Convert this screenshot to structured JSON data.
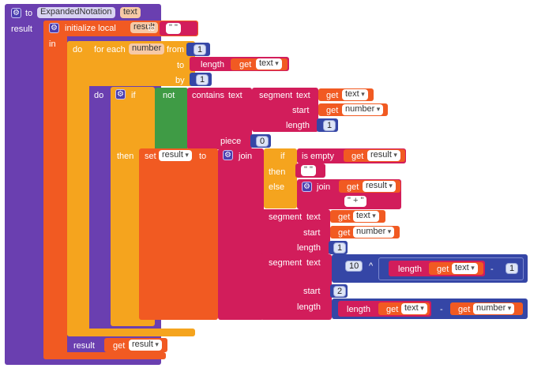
{
  "procedure": {
    "to_label": "to",
    "name": "ExpandedNotation",
    "param": "text",
    "result_label": "result"
  },
  "local": {
    "label": "initialize local",
    "name": "result",
    "to_label": "to",
    "value": "\"  \"",
    "in_label": "in"
  },
  "loop": {
    "do_label": "do",
    "for_each_label": "for each",
    "var": "number",
    "from_label": "from",
    "from_value": "1",
    "to_label": "to",
    "by_label": "by",
    "by_value": "1"
  },
  "to_expr": {
    "length_label": "length",
    "get_label": "get",
    "var": "text"
  },
  "inner": {
    "do_label": "do",
    "if_label": "if",
    "not_label": "not",
    "contains_label": "contains",
    "text_label": "text",
    "then_label": "then"
  },
  "seg1": {
    "segment_label": "segment",
    "text_label": "text",
    "get_label": "get",
    "text_var": "text",
    "start_label": "start",
    "start_var": "number",
    "length_label": "length",
    "length_value": "1"
  },
  "piece": {
    "label": "piece",
    "value": "0"
  },
  "set": {
    "set_label": "set",
    "var": "result",
    "to_label": "to",
    "join_label": "join"
  },
  "ifexpr": {
    "if_label": "if",
    "is_empty_label": "is empty",
    "get_label": "get",
    "var": "result",
    "then_label": "then",
    "then_value": "\"  \"",
    "else_label": "else",
    "join_label": "join",
    "join_get": "result",
    "plus_value": "\" + \""
  },
  "seg2": {
    "segment_label": "segment",
    "text_label": "text",
    "get_label": "get",
    "text_var": "text",
    "start_label": "start",
    "start_var": "number",
    "length_label": "length",
    "length_value": "1"
  },
  "seg3": {
    "segment_label": "segment",
    "text_label": "text",
    "base": "10",
    "op": "^",
    "length_label": "length",
    "get_label": "get",
    "var": "text",
    "minus": "-",
    "minus_value": "1",
    "start_label": "start",
    "start_value": "2",
    "length2_label": "length",
    "minus2": "-",
    "get2_var": "number"
  },
  "ret": {
    "result_label": "result",
    "get_label": "get",
    "var": "result"
  },
  "colors": {
    "procedure": "#6a3fb0",
    "variable": "#f15a22",
    "control": "#f5a41e",
    "logic": "#3f9b45",
    "text": "#d21d5b",
    "math": "#3546a6"
  }
}
